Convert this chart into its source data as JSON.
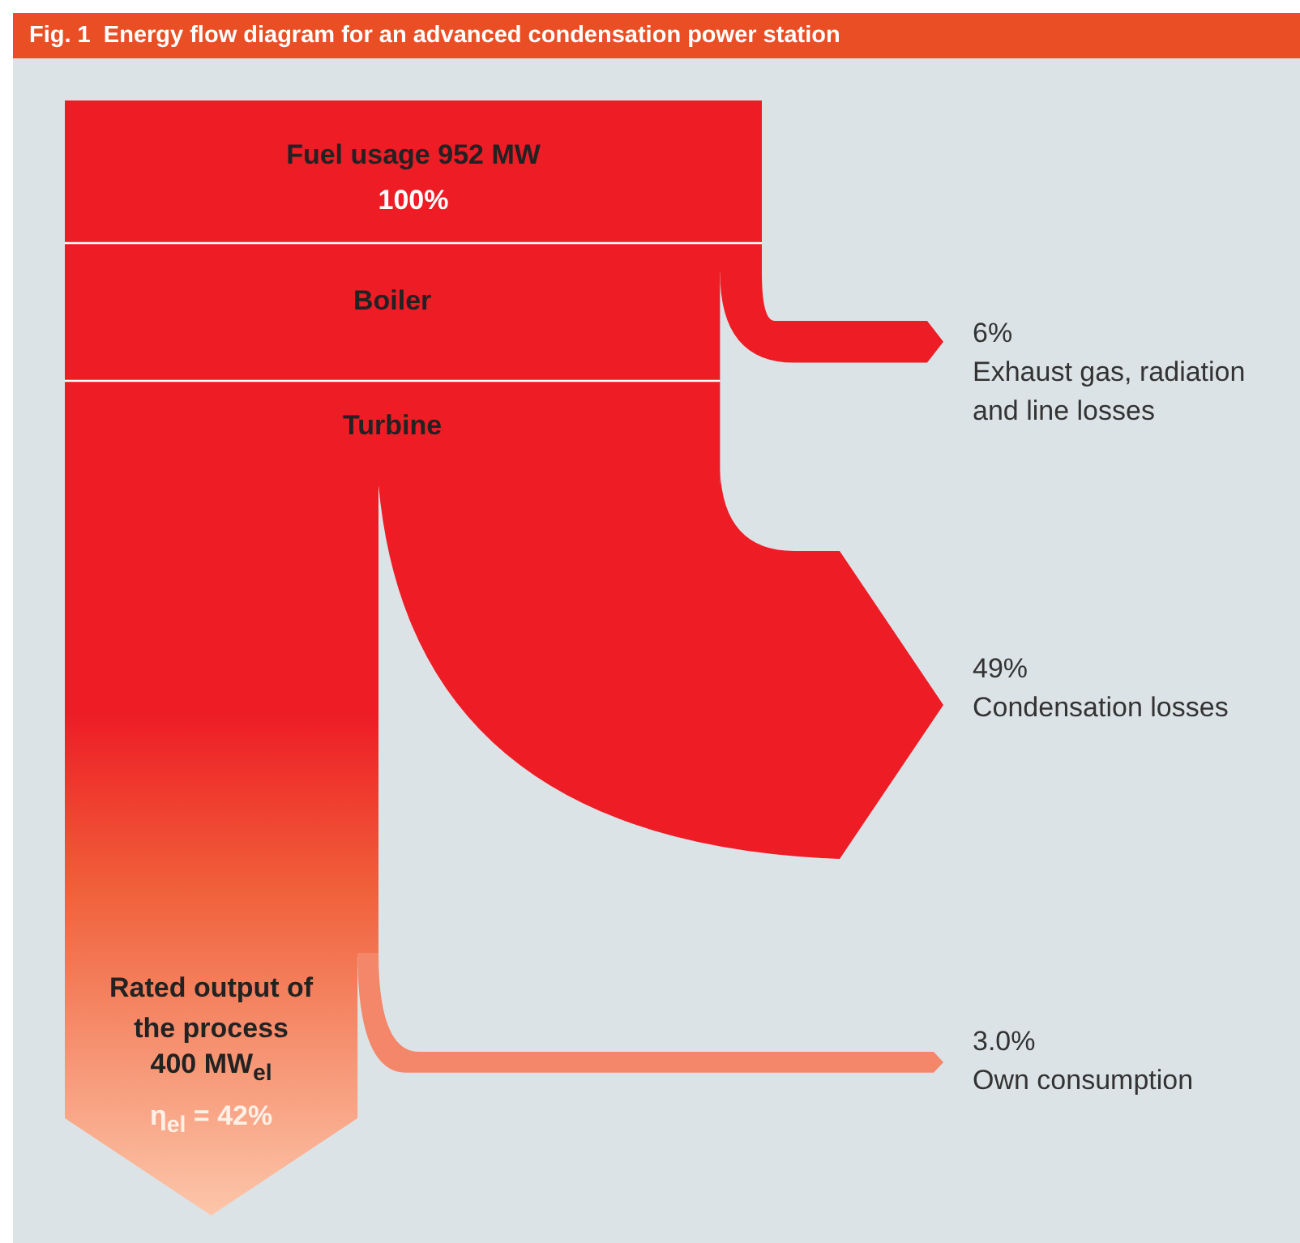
{
  "chart_data": {
    "type": "other",
    "title": "Fig. 1  Energy flow diagram for an advanced condensation power station",
    "categories": [
      "Fuel usage 952 MW",
      "Exhaust gas, radiation and line losses",
      "Condensation losses",
      "Own consumption",
      "Rated output of the process"
    ],
    "values": [
      100,
      6,
      49,
      3.0,
      42
    ],
    "value_labels": [
      "100%",
      "6%",
      "49%",
      "3.0%",
      "η$_{el}$ = 42%"
    ],
    "colors": [
      "#ee1c25",
      "#ee1c25",
      "#ee1c25",
      "#f4866a",
      "#ee1c25"
    ],
    "annotations": [
      "Boiler",
      "Turbine",
      "400 MW$_{el}$"
    ]
  }
}
